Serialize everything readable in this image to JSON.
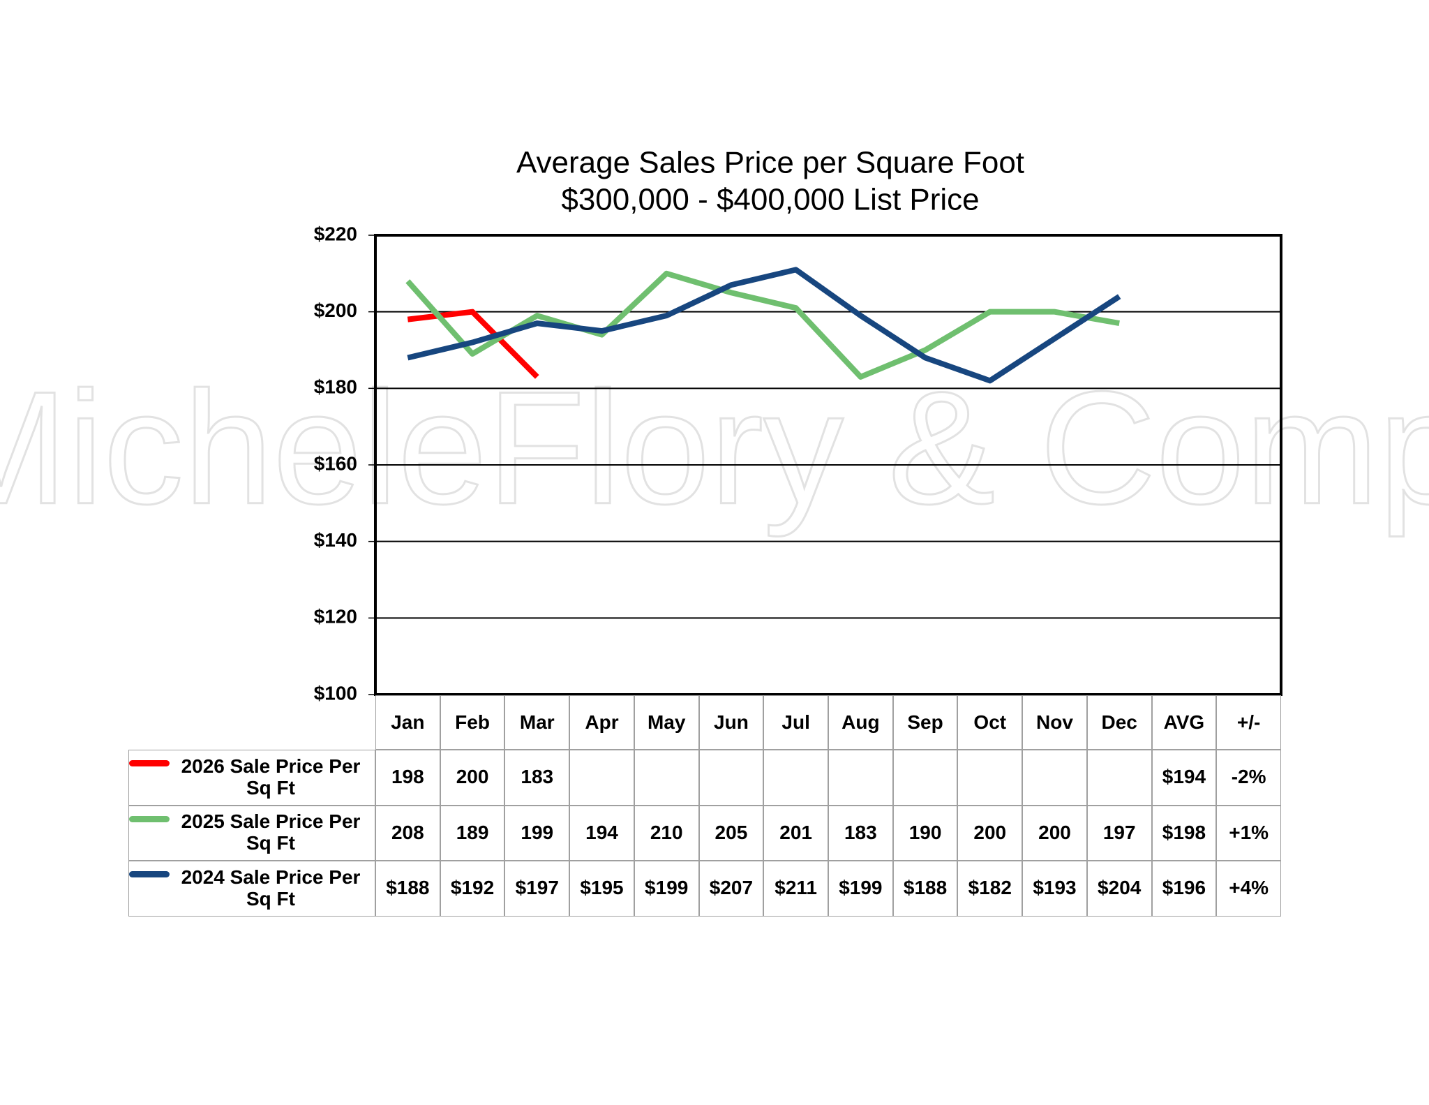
{
  "chart_data": {
    "type": "line",
    "title": "Average Sales Price per Square Foot",
    "subtitle": "$300,000 - $400,000 List Price",
    "watermark": "MicheleFlory & Company",
    "categories": [
      "Jan",
      "Feb",
      "Mar",
      "Apr",
      "May",
      "Jun",
      "Jul",
      "Aug",
      "Sep",
      "Oct",
      "Nov",
      "Dec"
    ],
    "table_columns": [
      "AVG",
      "+/-"
    ],
    "series": [
      {
        "name": "2026 Sale Price Per Sq Ft",
        "color": "#ff0000",
        "values": [
          198,
          200,
          183,
          null,
          null,
          null,
          null,
          null,
          null,
          null,
          null,
          null
        ],
        "avg": 194,
        "avg_label": "$194",
        "change": -2,
        "change_label": "-2%"
      },
      {
        "name": "2025 Sale Price Per Sq Ft",
        "color": "#6fbf6f",
        "values": [
          208,
          189,
          199,
          194,
          210,
          205,
          201,
          183,
          190,
          200,
          200,
          197
        ],
        "avg": 198,
        "avg_label": "$198",
        "change": 1,
        "change_label": "+1%"
      },
      {
        "name": "2024 Sale Price Per Sq Ft",
        "color": "#17467f",
        "values": [
          188,
          192,
          197,
          195,
          199,
          207,
          211,
          199,
          188,
          182,
          193,
          204
        ],
        "value_labels": [
          "$188",
          "$192",
          "$197",
          "$195",
          "$199",
          "$207",
          "$211",
          "$199",
          "$188",
          "$182",
          "$193",
          "$204"
        ],
        "avg": 196,
        "avg_label": "$196",
        "change": 4,
        "change_label": "+4%"
      }
    ],
    "ylim": [
      100,
      220
    ],
    "yticks": [
      {
        "value": 100,
        "label": "$100"
      },
      {
        "value": 120,
        "label": "$120"
      },
      {
        "value": 140,
        "label": "$140"
      },
      {
        "value": 160,
        "label": "$160"
      },
      {
        "value": 180,
        "label": "$180"
      },
      {
        "value": 200,
        "label": "$200"
      },
      {
        "value": 220,
        "label": "$220"
      }
    ],
    "grid": true
  }
}
